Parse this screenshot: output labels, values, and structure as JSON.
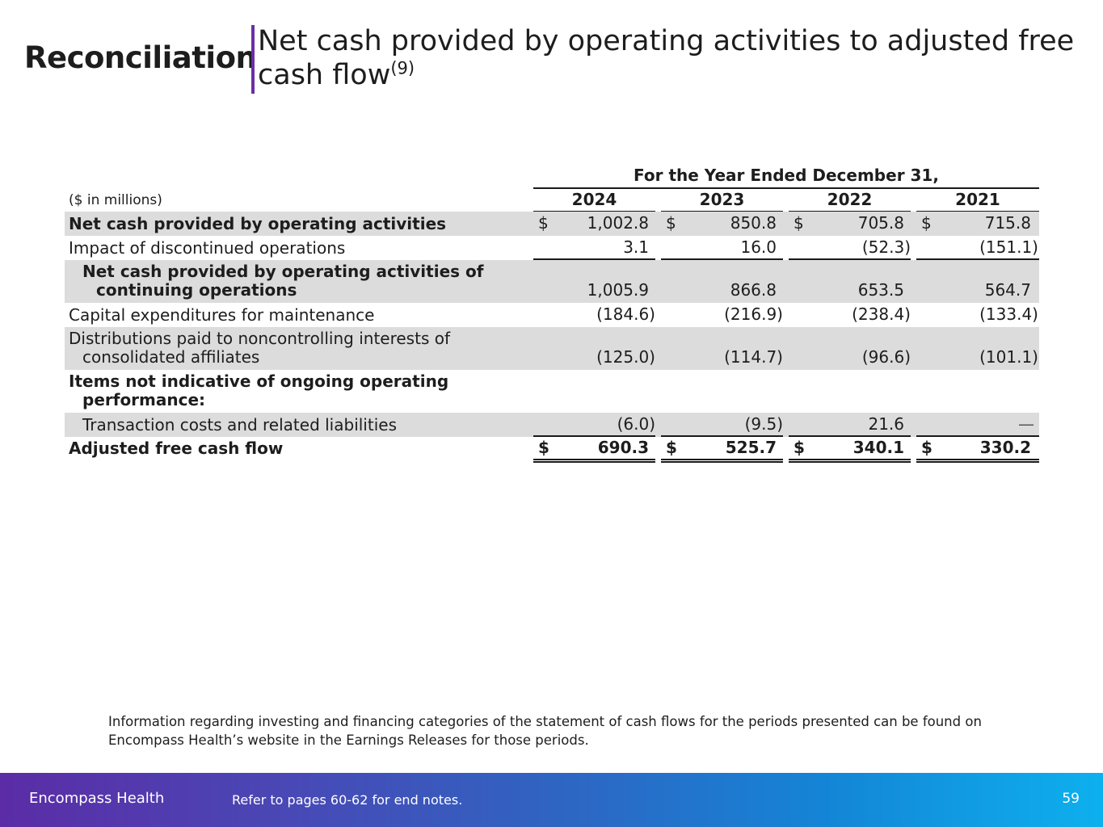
{
  "title": {
    "main": "Reconciliation",
    "subtitle": "Net cash provided by operating activities to adjusted free cash flow",
    "footnote_ref": "(9)"
  },
  "table": {
    "period_header": "For the Year Ended December 31,",
    "units_label": "($ in millions)",
    "years": [
      "2024",
      "2023",
      "2022",
      "2021"
    ],
    "currency_symbol": "$",
    "rows": [
      {
        "label_lines": [
          "Net cash provided by operating activities"
        ],
        "values": [
          "1,002.8",
          "850.8",
          "705.8",
          "715.8"
        ]
      },
      {
        "label_lines": [
          "Impact of discontinued operations"
        ],
        "values": [
          "3.1",
          "16.0",
          "(52.3)",
          "(151.1)"
        ]
      },
      {
        "label_lines": [
          "Net cash provided by operating activities of",
          "continuing operations"
        ],
        "values": [
          "1,005.9",
          "866.8",
          "653.5",
          "564.7"
        ]
      },
      {
        "label_lines": [
          "Capital expenditures for maintenance"
        ],
        "values": [
          "(184.6)",
          "(216.9)",
          "(238.4)",
          "(133.4)"
        ]
      },
      {
        "label_lines": [
          "Distributions paid to noncontrolling interests of",
          "consolidated affiliates"
        ],
        "values": [
          "(125.0)",
          "(114.7)",
          "(96.6)",
          "(101.1)"
        ]
      },
      {
        "label_lines": [
          "Items not indicative of ongoing operating",
          "performance:"
        ],
        "values": []
      },
      {
        "label_lines": [
          "Transaction costs and related liabilities"
        ],
        "values": [
          "(6.0)",
          "(9.5)",
          "21.6",
          "—"
        ]
      },
      {
        "label_lines": [
          "Adjusted free cash flow"
        ],
        "values": [
          "690.3",
          "525.7",
          "340.1",
          "330.2"
        ]
      }
    ]
  },
  "note": "Information regarding investing and financing categories of the statement of cash flows for the periods presented can be found on Encompass Health’s website in the Earnings Releases for those periods.",
  "footer": {
    "brand": "Encompass Health",
    "reference": "Refer to pages 60-62 for end notes.",
    "page_number": "59"
  },
  "colors": {
    "accent_purple": "#6b2fa5",
    "row_shade": "#dcdcdc",
    "footer_gradient_start": "#5b2ca6",
    "footer_gradient_end": "#0db0ee"
  }
}
